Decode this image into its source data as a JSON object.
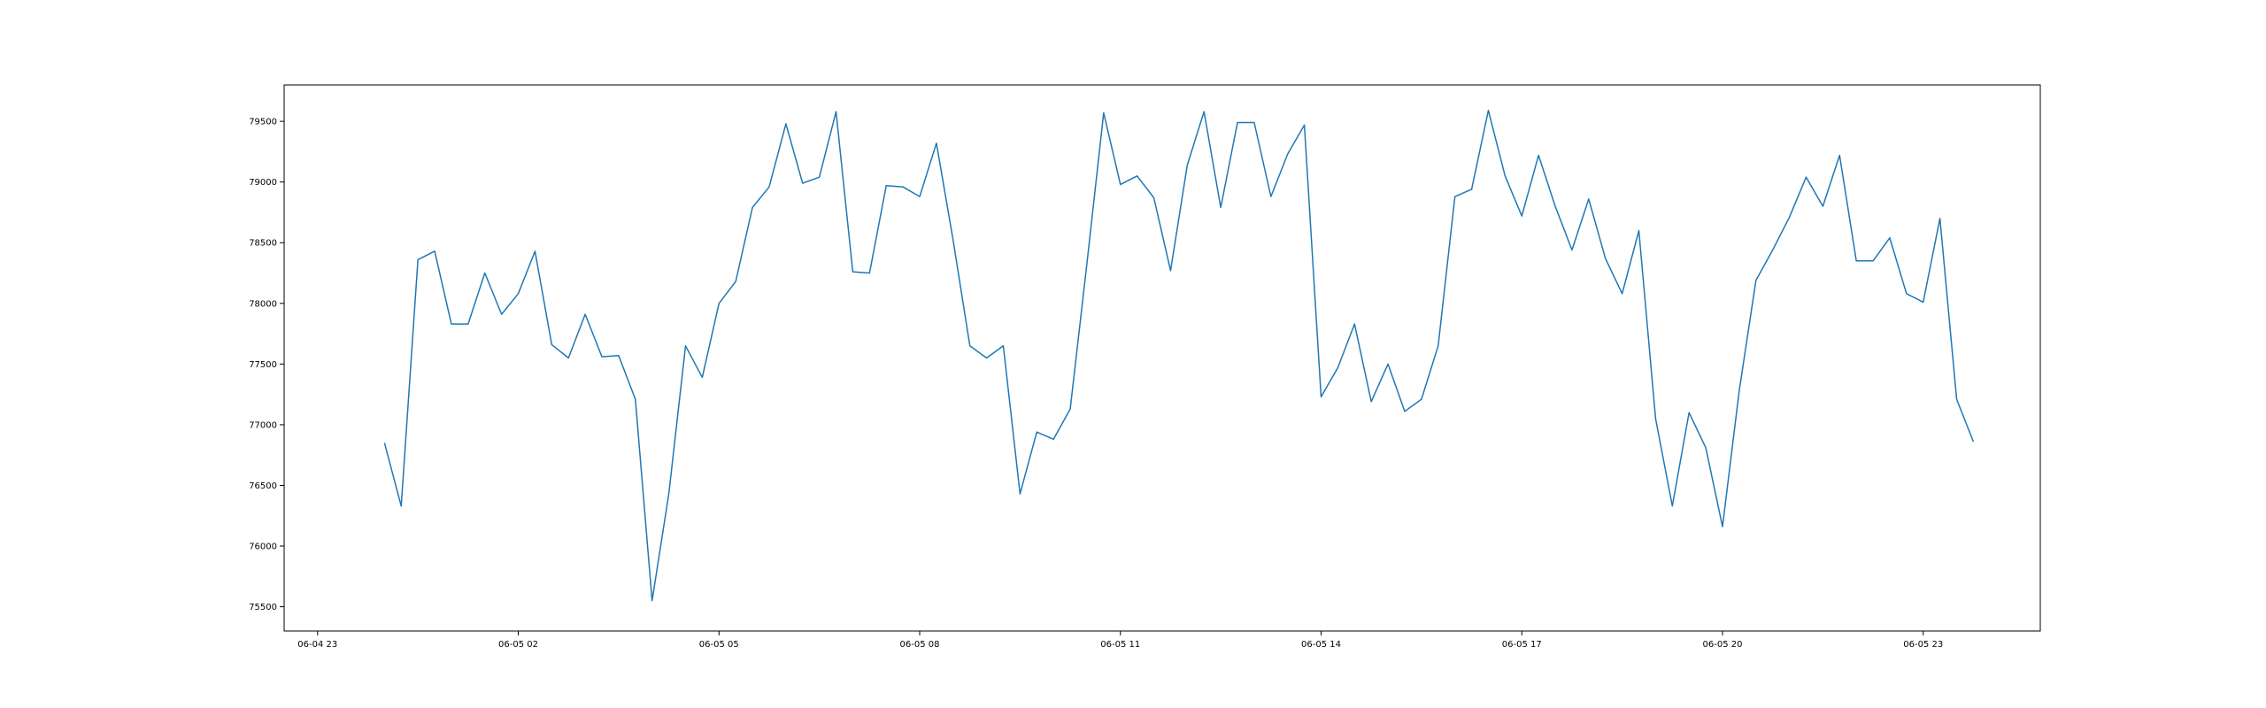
{
  "chart_data": {
    "type": "line",
    "title": "",
    "xlabel": "",
    "ylabel": "",
    "x_tick_labels": [
      "06-04 23",
      "06-05 02",
      "06-05 05",
      "06-05 08",
      "06-05 11",
      "06-05 14",
      "06-05 17",
      "06-05 20",
      "06-05 23"
    ],
    "y_tick_labels": [
      "75500",
      "76000",
      "76500",
      "77000",
      "77500",
      "78000",
      "78500",
      "79000",
      "79500"
    ],
    "y_ticks": [
      75500,
      76000,
      76500,
      77000,
      77500,
      78000,
      78500,
      79000,
      79500
    ],
    "x_range": [
      "2024-06-04 22:30",
      "2024-06-06 00:45"
    ],
    "ylim": [
      75300,
      79800
    ],
    "grid": false,
    "series": [
      {
        "color": "#1f77b4",
        "x": [
          "2024-06-05 00:00",
          "2024-06-05 00:15",
          "2024-06-05 00:30",
          "2024-06-05 00:45",
          "2024-06-05 01:00",
          "2024-06-05 01:15",
          "2024-06-05 01:30",
          "2024-06-05 01:45",
          "2024-06-05 02:00",
          "2024-06-05 02:15",
          "2024-06-05 02:30",
          "2024-06-05 02:45",
          "2024-06-05 03:00",
          "2024-06-05 03:15",
          "2024-06-05 03:30",
          "2024-06-05 03:45",
          "2024-06-05 04:00",
          "2024-06-05 04:15",
          "2024-06-05 04:30",
          "2024-06-05 04:45",
          "2024-06-05 05:00",
          "2024-06-05 05:15",
          "2024-06-05 05:30",
          "2024-06-05 05:45",
          "2024-06-05 06:00",
          "2024-06-05 06:15",
          "2024-06-05 06:30",
          "2024-06-05 06:45",
          "2024-06-05 07:00",
          "2024-06-05 07:15",
          "2024-06-05 07:30",
          "2024-06-05 07:45",
          "2024-06-05 08:00",
          "2024-06-05 08:15",
          "2024-06-05 08:30",
          "2024-06-05 08:45",
          "2024-06-05 09:00",
          "2024-06-05 09:15",
          "2024-06-05 09:30",
          "2024-06-05 09:45",
          "2024-06-05 10:00",
          "2024-06-05 10:15",
          "2024-06-05 10:30",
          "2024-06-05 10:45",
          "2024-06-05 11:00",
          "2024-06-05 11:15",
          "2024-06-05 11:30",
          "2024-06-05 11:45",
          "2024-06-05 12:00",
          "2024-06-05 12:15",
          "2024-06-05 12:30",
          "2024-06-05 12:45",
          "2024-06-05 13:00",
          "2024-06-05 13:15",
          "2024-06-05 13:30",
          "2024-06-05 13:45",
          "2024-06-05 14:00",
          "2024-06-05 14:15",
          "2024-06-05 14:30",
          "2024-06-05 14:45",
          "2024-06-05 15:00",
          "2024-06-05 15:15",
          "2024-06-05 15:30",
          "2024-06-05 15:45",
          "2024-06-05 16:00",
          "2024-06-05 16:15",
          "2024-06-05 16:30",
          "2024-06-05 16:45",
          "2024-06-05 17:00",
          "2024-06-05 17:15",
          "2024-06-05 17:30",
          "2024-06-05 17:45",
          "2024-06-05 18:00",
          "2024-06-05 18:15",
          "2024-06-05 18:30",
          "2024-06-05 18:45",
          "2024-06-05 19:00",
          "2024-06-05 19:15",
          "2024-06-05 19:30",
          "2024-06-05 19:45",
          "2024-06-05 20:00",
          "2024-06-05 20:15",
          "2024-06-05 20:30",
          "2024-06-05 20:45",
          "2024-06-05 21:00",
          "2024-06-05 21:15",
          "2024-06-05 21:30",
          "2024-06-05 21:45",
          "2024-06-05 22:00",
          "2024-06-05 22:15",
          "2024-06-05 22:30",
          "2024-06-05 22:45",
          "2024-06-05 23:00",
          "2024-06-05 23:15",
          "2024-06-05 23:30",
          "2024-06-05 23:45"
        ],
        "y": [
          76850,
          76330,
          78360,
          78430,
          77830,
          77830,
          78250,
          77910,
          78080,
          78430,
          77660,
          77550,
          77910,
          77560,
          77570,
          77210,
          75550,
          76430,
          77650,
          77390,
          78000,
          78180,
          78790,
          78960,
          79480,
          78990,
          79040,
          79580,
          78260,
          78250,
          78970,
          78960,
          78880,
          79320,
          78520,
          77650,
          77550,
          77650,
          76430,
          76940,
          76880,
          77130,
          78330,
          79570,
          78980,
          79050,
          78870,
          78270,
          79140,
          79580,
          78790,
          79490,
          79490,
          78880,
          79230,
          79470,
          77230,
          77470,
          77830,
          77190,
          77500,
          77110,
          77210,
          77650,
          78880,
          78940,
          79590,
          79050,
          78720,
          79220,
          78800,
          78440,
          78860,
          78370,
          78080,
          78600,
          77050,
          76330,
          77100,
          76810,
          76160,
          77280,
          78190,
          78440,
          78710,
          79040,
          78800,
          79220,
          78350,
          78350,
          78540,
          78080,
          78010,
          78700,
          77210,
          76860
        ]
      }
    ]
  }
}
